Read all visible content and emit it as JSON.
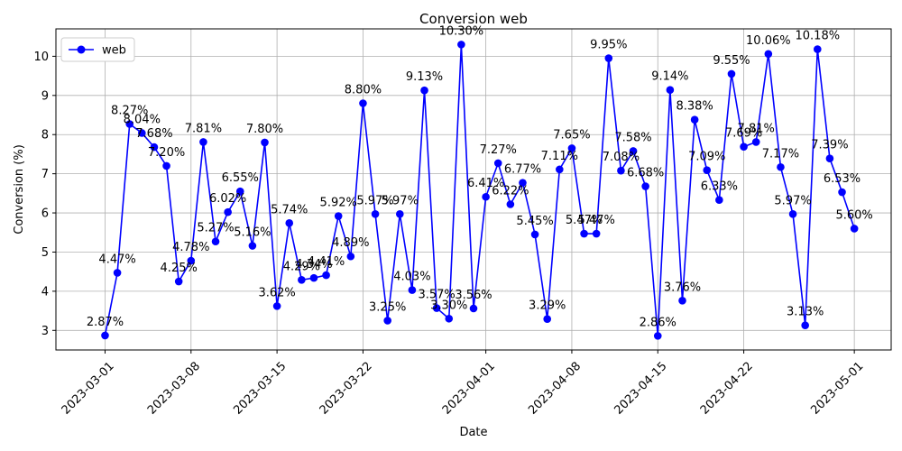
{
  "chart_data": {
    "type": "line",
    "title": "Conversion web",
    "xlabel": "Date",
    "ylabel": "Conversion (%)",
    "xlim": [
      "2023-02-25",
      "2023-05-04"
    ],
    "ylim": [
      2.5,
      10.7
    ],
    "x_ticks": [
      "2023-03-01",
      "2023-03-08",
      "2023-03-15",
      "2023-03-22",
      "2023-04-01",
      "2023-04-08",
      "2023-04-15",
      "2023-04-22",
      "2023-05-01"
    ],
    "y_ticks": [
      3,
      4,
      5,
      6,
      7,
      8,
      9,
      10
    ],
    "grid": true,
    "legend_position": "upper-left",
    "colors": {
      "series": "#0000ff",
      "grid": "#b0b0b0",
      "axes": "#000000"
    },
    "series": [
      {
        "name": "web",
        "x": [
          "2023-03-01",
          "2023-03-02",
          "2023-03-03",
          "2023-03-04",
          "2023-03-05",
          "2023-03-06",
          "2023-03-07",
          "2023-03-08",
          "2023-03-09",
          "2023-03-10",
          "2023-03-11",
          "2023-03-12",
          "2023-03-13",
          "2023-03-14",
          "2023-03-15",
          "2023-03-16",
          "2023-03-17",
          "2023-03-18",
          "2023-03-19",
          "2023-03-20",
          "2023-03-21",
          "2023-03-22",
          "2023-03-23",
          "2023-03-24",
          "2023-03-25",
          "2023-03-26",
          "2023-03-27",
          "2023-03-28",
          "2023-03-29",
          "2023-03-30",
          "2023-03-31",
          "2023-04-01",
          "2023-04-02",
          "2023-04-03",
          "2023-04-04",
          "2023-04-05",
          "2023-04-06",
          "2023-04-07",
          "2023-04-08",
          "2023-04-09",
          "2023-04-10",
          "2023-04-11",
          "2023-04-12",
          "2023-04-13",
          "2023-04-14",
          "2023-04-15",
          "2023-04-16",
          "2023-04-17",
          "2023-04-18",
          "2023-04-19",
          "2023-04-20",
          "2023-04-21",
          "2023-04-22",
          "2023-04-23",
          "2023-04-24",
          "2023-04-25",
          "2023-04-26",
          "2023-04-27",
          "2023-04-28",
          "2023-04-29",
          "2023-04-30",
          "2023-05-01"
        ],
        "values": [
          2.87,
          4.47,
          8.27,
          8.04,
          7.68,
          7.2,
          4.25,
          4.78,
          7.81,
          5.27,
          6.02,
          6.55,
          5.16,
          7.8,
          3.62,
          5.74,
          4.29,
          4.34,
          4.41,
          5.92,
          4.89,
          8.8,
          5.97,
          3.25,
          5.97,
          4.03,
          9.13,
          3.57,
          3.3,
          10.3,
          3.56,
          6.41,
          7.27,
          6.22,
          6.77,
          5.45,
          3.29,
          7.11,
          7.65,
          5.47,
          5.47,
          9.95,
          7.08,
          7.58,
          6.68,
          2.86,
          9.14,
          3.76,
          8.38,
          7.09,
          6.33,
          9.55,
          7.69,
          7.81,
          10.06,
          7.17,
          5.97,
          3.13,
          10.18,
          7.39,
          6.53,
          5.6
        ],
        "labels": [
          "2.87%",
          "4.47%",
          "8.27%",
          "8.04%",
          "7.68%",
          "7.20%",
          "4.25%",
          "4.78%",
          "7.81%",
          "5.27%",
          "6.02%",
          "6.55%",
          "5.16%",
          "7.80%",
          "3.62%",
          "5.74%",
          "4.29%",
          "4.34%",
          "4.41%",
          "5.92%",
          "4.89%",
          "8.80%",
          "5.97%",
          "3.25%",
          "5.97%",
          "4.03%",
          "9.13%",
          "3.57%",
          "3.30%",
          "10.30%",
          "3.56%",
          "6.41%",
          "7.27%",
          "6.22%",
          "6.77%",
          "5.45%",
          "3.29%",
          "7.11%",
          "7.65%",
          "5.47%",
          "5.47%",
          "9.95%",
          "7.08%",
          "7.58%",
          "6.68%",
          "2.86%",
          "9.14%",
          "3.76%",
          "8.38%",
          "7.09%",
          "6.33%",
          "9.55%",
          "7.69%",
          "7.81%",
          "10.06%",
          "7.17%",
          "5.97%",
          "3.13%",
          "10.18%",
          "7.39%",
          "6.53%",
          "5.60%"
        ]
      }
    ]
  }
}
